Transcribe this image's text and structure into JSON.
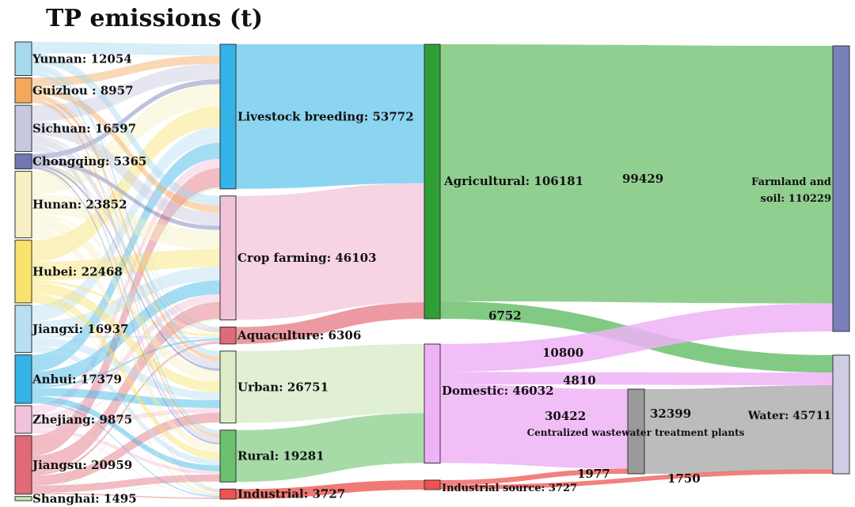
{
  "title": "TP emissions (t)",
  "chart_data": {
    "type": "sankey",
    "title": "TP emissions (t)",
    "provinces": [
      {
        "key": "yunnan",
        "label": "Yunnan: 12054",
        "name": "Yunnan",
        "value": 12054,
        "color": "#a6d8ee"
      },
      {
        "key": "guizhou",
        "label": "Guizhou : 8957",
        "name": "Guizhou",
        "value": 8957,
        "color": "#f4a85c"
      },
      {
        "key": "sichuan",
        "label": "Sichuan: 16597",
        "name": "Sichuan",
        "value": 16597,
        "color": "#c7c7e0"
      },
      {
        "key": "chongqing",
        "label": "Chongqing: 5365",
        "name": "Chongqing",
        "value": 5365,
        "color": "#7177b3"
      },
      {
        "key": "hunan",
        "label": "Hunan: 23852",
        "name": "Hunan",
        "value": 23852,
        "color": "#f7efc4"
      },
      {
        "key": "hubei",
        "label": "Hubei: 22468",
        "name": "Hubei",
        "value": 22468,
        "color": "#f9e36e"
      },
      {
        "key": "jiangxi",
        "label": "Jiangxi: 16937",
        "name": "Jiangxi",
        "value": 16937,
        "color": "#b8def2"
      },
      {
        "key": "anhui",
        "label": "Anhui: 17379",
        "name": "Anhui",
        "value": 17379,
        "color": "#33b3e6"
      },
      {
        "key": "zhejiang",
        "label": "Zhejiang: 9875",
        "name": "Zhejiang",
        "value": 9875,
        "color": "#f2c2da"
      },
      {
        "key": "jiangsu",
        "label": "Jiangsu: 20959",
        "name": "Jiangsu",
        "value": 20959,
        "color": "#e06a78"
      },
      {
        "key": "shanghai",
        "label": "Shanghai: 1495",
        "name": "Shanghai",
        "value": 1495,
        "color": "#c9e6b5"
      }
    ],
    "sectors": [
      {
        "key": "livestock",
        "label": "Livestock breeding: 53772",
        "name": "Livestock breeding",
        "value": 53772,
        "color": "#33b3e6",
        "flow": "#7fd0ef"
      },
      {
        "key": "crop",
        "label": "Crop farming: 46103",
        "name": "Crop farming",
        "value": 46103,
        "color": "#f2c2da",
        "flow": "#f5cfe0"
      },
      {
        "key": "aquaculture",
        "label": "Aquaculture: 6306",
        "name": "Aquaculture",
        "value": 6306,
        "color": "#e06a78",
        "flow": "#ea8f98"
      },
      {
        "key": "urban",
        "label": "Urban: 26751",
        "name": "Urban",
        "value": 26751,
        "color": "#dcedc8",
        "flow": "#deeed0"
      },
      {
        "key": "rural",
        "label": "Rural: 19281",
        "name": "Rural",
        "value": 19281,
        "color": "#6cc16e",
        "flow": "#9cd79e"
      },
      {
        "key": "industrial",
        "label": "Industrial: 3727",
        "name": "Industrial",
        "value": 3727,
        "color": "#f2514f",
        "flow": "#f06a66"
      }
    ],
    "sources": [
      {
        "key": "agricultural",
        "label": "Agricultural: 106181",
        "name": "Agricultural",
        "value": 106181,
        "color": "#2e9e35"
      },
      {
        "key": "domestic",
        "label": "Domestic: 46032",
        "name": "Domestic",
        "value": 46032,
        "color": "#eeb3f7"
      },
      {
        "key": "indsource",
        "label": "Industrial source: 3727",
        "name": "Industrial source",
        "value": 3727,
        "color": "#f2514f"
      }
    ],
    "wwtp": {
      "key": "wwtp",
      "label": "Centralized wastewater treatment plants",
      "value_label": "32399",
      "value": 32399,
      "color": "#999999"
    },
    "sinks": [
      {
        "key": "farmland",
        "label_line1": "Farmland and",
        "label_line2": "soil: 110229",
        "name": "Farmland and soil",
        "value": 110229,
        "color": "#7a80b9"
      },
      {
        "key": "water",
        "label": "Water: 45711",
        "name": "Water",
        "value": 45711,
        "color": "#cfcde3"
      }
    ],
    "flows": [
      {
        "from": "Agricultural",
        "to": "Farmland and soil",
        "value": 99429,
        "label": "99429",
        "color": "#7dc77d"
      },
      {
        "from": "Agricultural",
        "to": "Water",
        "value": 6752,
        "label": "6752",
        "color": "#6cc16e"
      },
      {
        "from": "Domestic",
        "to": "Farmland and soil",
        "value": 10800,
        "label": "10800",
        "color": "#eeb3f7"
      },
      {
        "from": "Domestic",
        "to": "Water",
        "value": 4810,
        "label": "4810",
        "color": "#eeb3f7"
      },
      {
        "from": "Domestic",
        "to": "Centralized wastewater treatment plants",
        "value": 30422,
        "label": "30422",
        "color": "#eeb3f7"
      },
      {
        "from": "Industrial source",
        "to": "Centralized wastewater treatment plants",
        "value": 1977,
        "label": "1977",
        "color": "#f06a66"
      },
      {
        "from": "Industrial source",
        "to": "Water",
        "value": 1750,
        "label": "1750",
        "color": "#f06a66"
      },
      {
        "from": "Centralized wastewater treatment plants",
        "to": "Water",
        "value": 32399,
        "label": "",
        "color": "#b5b5b5"
      }
    ]
  }
}
